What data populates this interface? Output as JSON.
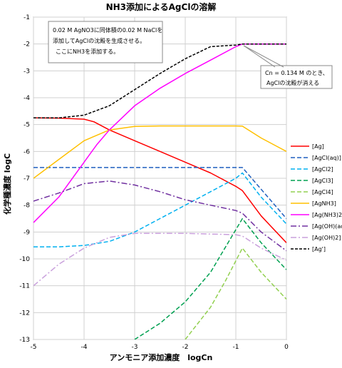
{
  "chart_data": {
    "type": "line",
    "title": "NH3添加によるAgClの溶解",
    "xlabel": "アンモニア添加濃度　logCn",
    "ylabel": "化学種濃度 logC",
    "xlim": [
      -5,
      0
    ],
    "ylim": [
      -13,
      -1
    ],
    "xticks": [
      -5,
      -4,
      -3,
      -2,
      -1,
      0
    ],
    "yticks": [
      -1,
      -2,
      -3,
      -4,
      -5,
      -6,
      -7,
      -8,
      -9,
      -10,
      -11,
      -12,
      -13
    ],
    "grid": true,
    "legend_position": "right",
    "annotations": [
      {
        "name": "note-box",
        "lines": [
          "0.02 M AgNO3に同体積の0.02 M NaClを",
          "添加してAgClの沈殿を生成させる。",
          "ここにNH3を添加する。"
        ]
      },
      {
        "name": "callout",
        "lines": [
          "Cn = 0.134 M のとき、",
          "AgClの沈殿が消える"
        ]
      }
    ],
    "series": [
      {
        "name": "[Ag]",
        "color": "#ff0000",
        "dash": "solid",
        "x": [
          -5,
          -4.5,
          -4,
          -3.8,
          -3.5,
          -3,
          -2.5,
          -2,
          -1.5,
          -1,
          -0.87,
          -0.5,
          0
        ],
        "y": [
          -4.75,
          -4.76,
          -4.8,
          -4.9,
          -5.2,
          -5.6,
          -6.0,
          -6.4,
          -6.8,
          -7.3,
          -7.46,
          -8.4,
          -9.4
        ]
      },
      {
        "name": "[AgCl(aq)]",
        "color": "#1f5fbf",
        "dash": "6,3",
        "x": [
          -5,
          -0.87,
          0
        ],
        "y": [
          -6.6,
          -6.6,
          -8.5
        ]
      },
      {
        "name": "[AgCl2]",
        "color": "#00b0f0",
        "dash": "6,3",
        "x": [
          -5,
          -4.5,
          -4,
          -3.5,
          -3,
          -2.5,
          -2,
          -1.5,
          -1,
          -0.87,
          -0.5,
          0
        ],
        "y": [
          -9.55,
          -9.55,
          -9.5,
          -9.35,
          -9.0,
          -8.5,
          -8.0,
          -7.5,
          -7.0,
          -6.8,
          -7.7,
          -8.7
        ]
      },
      {
        "name": "[AgCl3]",
        "color": "#00a050",
        "dash": "6,3",
        "x": [
          -3,
          -2.5,
          -2,
          -1.5,
          -0.87,
          -0.5,
          0
        ],
        "y": [
          -13.0,
          -12.4,
          -11.6,
          -10.5,
          -8.5,
          -9.4,
          -10.4
        ]
      },
      {
        "name": "[AgCl4]",
        "color": "#92d050",
        "dash": "6,3",
        "x": [
          -2,
          -1.5,
          -1.2,
          -0.87,
          -0.5,
          0
        ],
        "y": [
          -13.0,
          -11.8,
          -10.8,
          -9.6,
          -10.5,
          -11.5
        ]
      },
      {
        "name": "[AgNH3]",
        "color": "#ffc000",
        "dash": "solid",
        "x": [
          -5,
          -4.5,
          -4,
          -3.5,
          -3,
          -2.5,
          -2,
          -1.5,
          -1,
          -0.87,
          -0.5,
          0
        ],
        "y": [
          -7.0,
          -6.3,
          -5.6,
          -5.2,
          -5.07,
          -5.05,
          -5.05,
          -5.05,
          -5.05,
          -5.06,
          -5.5,
          -6.0
        ]
      },
      {
        "name": "[Ag(NH3)2]",
        "color": "#ff00ff",
        "dash": "solid",
        "x": [
          -5,
          -4.5,
          -4,
          -3.75,
          -3.5,
          -3,
          -2.5,
          -2,
          -1.5,
          -1,
          -0.87,
          0
        ],
        "y": [
          -8.65,
          -7.7,
          -6.4,
          -5.75,
          -5.2,
          -4.3,
          -3.65,
          -3.1,
          -2.6,
          -2.1,
          -2.0,
          -2.0
        ]
      },
      {
        "name": "[Ag(OH)(aq)]",
        "color": "#7030a0",
        "dash": "8,3,2,3",
        "x": [
          -5,
          -4.5,
          -4,
          -3.5,
          -3,
          -2.5,
          -2,
          -1.5,
          -1,
          -0.87,
          -0.5,
          0
        ],
        "y": [
          -7.85,
          -7.55,
          -7.2,
          -7.1,
          -7.25,
          -7.5,
          -7.8,
          -8.0,
          -8.2,
          -8.3,
          -9.0,
          -9.7
        ]
      },
      {
        "name": "[Ag(OH)2]",
        "color": "#c9a0dc",
        "dash": "8,3,2,3",
        "x": [
          -5,
          -4.5,
          -4,
          -3.5,
          -3,
          -2,
          -1,
          -0.87,
          -0.5,
          0
        ],
        "y": [
          -11.0,
          -10.2,
          -9.6,
          -9.2,
          -9.05,
          -9.05,
          -9.1,
          -9.15,
          -9.6,
          -10.05
        ]
      },
      {
        "name": "[Ag']",
        "color": "#000000",
        "dash": "4,2",
        "x": [
          -5,
          -4.5,
          -4,
          -3.5,
          -3,
          -2.5,
          -2,
          -1.5,
          -1,
          -0.87,
          -0.5,
          0
        ],
        "y": [
          -4.75,
          -4.75,
          -4.65,
          -4.3,
          -3.7,
          -3.1,
          -2.55,
          -2.1,
          -2.04,
          -2.0,
          -2.0,
          -2.0
        ]
      }
    ]
  }
}
